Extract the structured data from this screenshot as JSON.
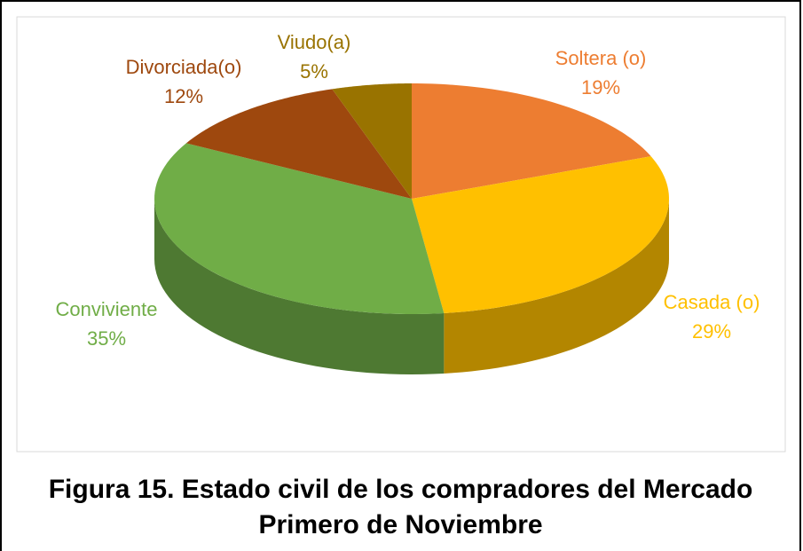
{
  "chart_data": {
    "type": "pie",
    "title": "Figura 15. Estado civil de los compradores del Mercado Primero de Noviembre",
    "categories": [
      "Soltera (o)",
      "Casada (o)",
      "Conviviente",
      "Divorciada(o)",
      "Viudo(a)"
    ],
    "values": [
      19,
      29,
      35,
      12,
      5
    ],
    "value_labels": [
      "19%",
      "29%",
      "35%",
      "12%",
      "5%"
    ],
    "colors": [
      "#ED7D31",
      "#FFC000",
      "#70AD47",
      "#9E480E",
      "#997300"
    ]
  }
}
